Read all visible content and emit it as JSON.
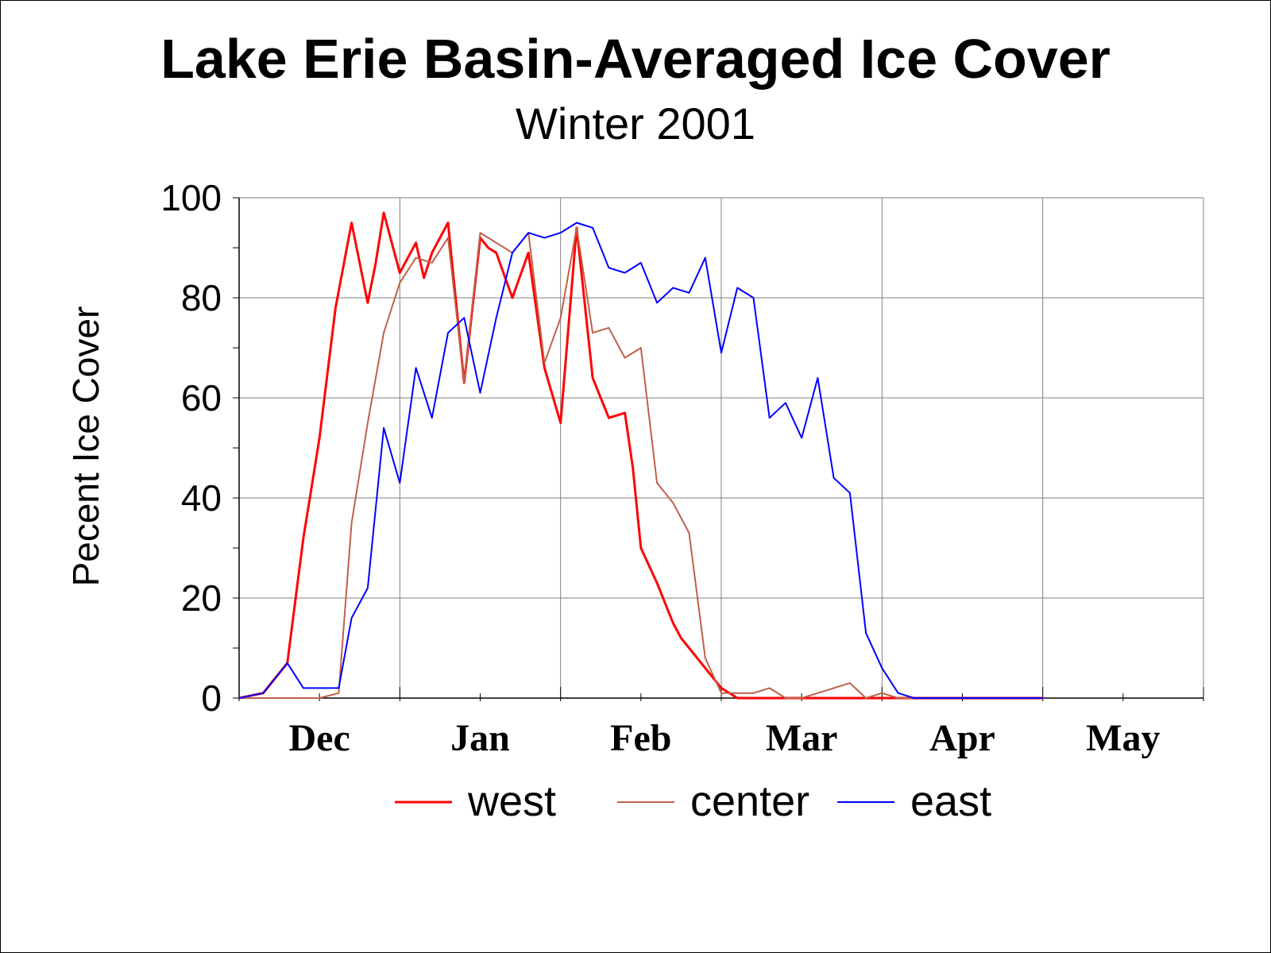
{
  "chart_data": {
    "type": "line",
    "title": "Lake Erie Basin-Averaged Ice Cover",
    "subtitle": "Winter 2001",
    "xlabel": "",
    "ylabel": "Pecent Ice Cover",
    "ylim": [
      0,
      100
    ],
    "yticks": [
      "0",
      "20",
      "40",
      "60",
      "80",
      "100"
    ],
    "x_unit": "week",
    "xlim": [
      0,
      60
    ],
    "month_labels": [
      "Dec",
      "Jan",
      "Feb",
      "Mar",
      "Apr",
      "May"
    ],
    "month_label_positions": [
      5,
      15,
      25,
      35,
      45,
      55
    ],
    "grid": true,
    "legend_position": "bottom",
    "series": [
      {
        "name": "west",
        "color": "#ff0000",
        "stroke": 3,
        "x": [
          0,
          1.5,
          3,
          4,
          4.5,
          5,
          6,
          7,
          8,
          8.5,
          9,
          10,
          11,
          11.5,
          12,
          13,
          14,
          15,
          15.5,
          16,
          17,
          18,
          19,
          20,
          21,
          22,
          23,
          24,
          24.5,
          25,
          26,
          27,
          27.5,
          28,
          29,
          30,
          31,
          32,
          33,
          34,
          34.3,
          34.6,
          35,
          36,
          38,
          40,
          42,
          44,
          46,
          48,
          50
        ],
        "y": [
          0,
          1,
          7,
          32,
          42,
          52,
          78,
          95,
          79,
          87,
          97,
          85,
          91,
          84,
          89,
          95,
          63,
          92,
          90,
          89,
          80,
          89,
          66,
          55,
          94,
          64,
          56,
          57,
          46,
          30,
          23,
          15,
          12,
          10,
          6,
          2,
          0,
          0,
          0,
          0,
          0,
          0,
          0,
          0,
          0,
          0,
          0,
          0,
          0,
          0,
          0
        ]
      },
      {
        "name": "center",
        "color": "#c0604a",
        "stroke": 2,
        "x": [
          0,
          2,
          4,
          5,
          6.2,
          7,
          8,
          9,
          10,
          11,
          12,
          13,
          14,
          15,
          16,
          17,
          18,
          19,
          20,
          21,
          22,
          23,
          24,
          25,
          26,
          27,
          28,
          29,
          30,
          31,
          32,
          33,
          34,
          35,
          36,
          37,
          38,
          39,
          40,
          41,
          42,
          43,
          44,
          45,
          46,
          47,
          48,
          50
        ],
        "y": [
          0,
          0,
          0,
          0,
          1,
          35,
          55,
          73,
          83,
          88,
          87,
          92,
          63,
          93,
          91,
          89,
          93,
          67,
          76,
          94,
          73,
          74,
          68,
          70,
          43,
          39,
          33,
          8,
          1,
          1,
          1,
          2,
          0,
          0,
          1,
          2,
          3,
          0,
          1,
          0,
          0,
          0,
          0,
          0,
          0,
          0,
          0,
          0
        ]
      },
      {
        "name": "east",
        "color": "#0000ff",
        "stroke": 2,
        "x": [
          0,
          1.5,
          3,
          4,
          6.2,
          7,
          8,
          9,
          10,
          11,
          12,
          13,
          14,
          15,
          16,
          17,
          18,
          19,
          20,
          21,
          22,
          23,
          24,
          25,
          26,
          27,
          28,
          29,
          30,
          31,
          32,
          33,
          34,
          35,
          36,
          37,
          38,
          39,
          40,
          41,
          42,
          43,
          44,
          45,
          46,
          47,
          48,
          49,
          50
        ],
        "y": [
          0,
          1,
          7,
          2,
          2,
          16,
          22,
          54,
          43,
          66,
          56,
          73,
          76,
          61,
          76,
          89,
          93,
          92,
          93,
          95,
          94,
          86,
          85,
          87,
          79,
          82,
          81,
          88,
          69,
          82,
          80,
          56,
          59,
          52,
          64,
          44,
          41,
          13,
          6,
          1,
          0,
          0,
          0,
          0,
          0,
          0,
          0,
          0,
          0
        ]
      }
    ]
  }
}
